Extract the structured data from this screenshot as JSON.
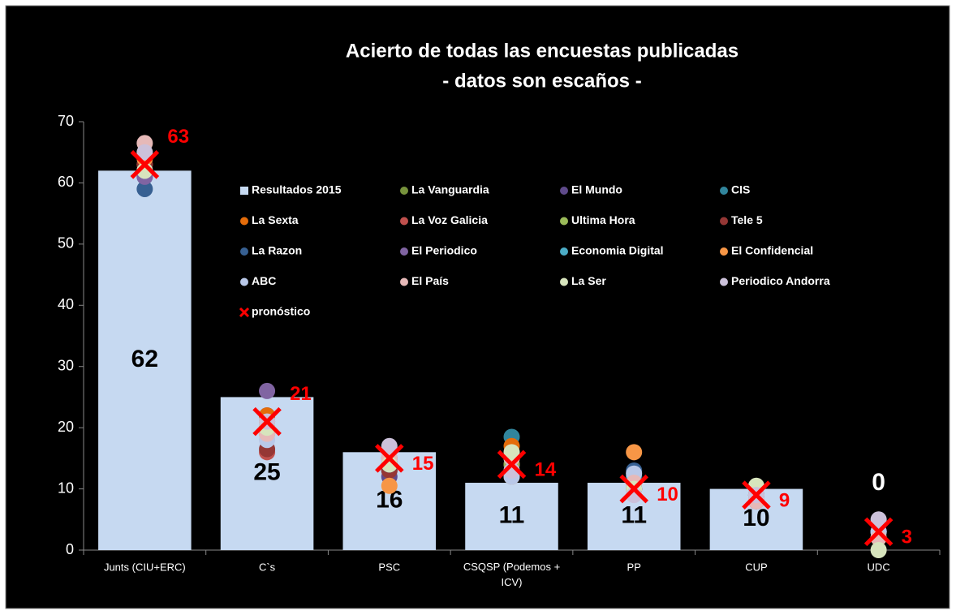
{
  "chart_data": {
    "type": "bar",
    "title": "Acierto de todas las encuestas publicadas",
    "subtitle": "- datos son escaños -",
    "categories": [
      "Junts (CIU+ERC)",
      "C`s",
      "PSC",
      "CSQSP (Podemos + ICV)",
      "PP",
      "CUP",
      "UDC"
    ],
    "ylim": [
      0,
      70
    ],
    "yticks": [
      0,
      10,
      20,
      30,
      40,
      50,
      60,
      70
    ],
    "bar": {
      "name": "Resultados 2015",
      "color": "#c6d9f1",
      "values": [
        62,
        25,
        16,
        11,
        11,
        10,
        0
      ]
    },
    "series": [
      {
        "name": "La Vanguardia",
        "color": "#77933c",
        "values": [
          63,
          20,
          14,
          14,
          11,
          9,
          2
        ]
      },
      {
        "name": "El Mundo",
        "color": "#5f4a8b",
        "values": [
          62,
          22,
          12,
          14,
          12,
          8,
          3
        ]
      },
      {
        "name": "CIS",
        "color": "#31859c",
        "values": [
          61,
          20,
          13,
          18.5,
          12,
          9,
          3
        ]
      },
      {
        "name": "La Sexta",
        "color": "#e46c0a",
        "values": [
          64,
          22,
          15,
          17,
          10,
          9,
          2
        ]
      },
      {
        "name": "La Voz  Galicia",
        "color": "#c0504d",
        "values": [
          63,
          16,
          13,
          14,
          11,
          8,
          3
        ]
      },
      {
        "name": "Ultima Hora",
        "color": "#9bbb59",
        "values": [
          62,
          19,
          14,
          14,
          11,
          9,
          2
        ]
      },
      {
        "name": "Tele 5",
        "color": "#953735",
        "values": [
          63,
          16.5,
          13,
          13,
          10,
          9,
          3
        ]
      },
      {
        "name": "La Razon",
        "color": "#376092",
        "values": [
          59,
          20,
          14,
          13,
          13,
          9,
          3
        ]
      },
      {
        "name": "El Periodico",
        "color": "#8064a2",
        "values": [
          61,
          26,
          15,
          13,
          10,
          8,
          3
        ]
      },
      {
        "name": "Economia Digital",
        "color": "#4bacc6",
        "values": [
          62,
          21,
          14,
          15,
          10,
          9,
          3
        ]
      },
      {
        "name": "El Confidencial",
        "color": "#f79646",
        "values": [
          64,
          21,
          10.5,
          12,
          16,
          8,
          2
        ]
      },
      {
        "name": "ABC",
        "color": "#b9c8e8",
        "values": [
          62,
          18,
          15,
          12,
          12.5,
          9,
          3
        ]
      },
      {
        "name": "El País",
        "color": "#e6b9b8",
        "values": [
          66.5,
          19,
          15,
          15,
          11,
          8,
          2
        ]
      },
      {
        "name": "La Ser",
        "color": "#d7e4bd",
        "values": [
          62,
          20,
          14,
          16,
          10,
          10.5,
          0
        ]
      },
      {
        "name": "Periodico Andorra",
        "color": "#ccc1da",
        "values": [
          65,
          21,
          17,
          13,
          9,
          9,
          5
        ]
      }
    ],
    "forecast": {
      "name": "pronóstico",
      "color": "#ff0000",
      "values": [
        63,
        21,
        15,
        14,
        10,
        9,
        3
      ]
    }
  }
}
